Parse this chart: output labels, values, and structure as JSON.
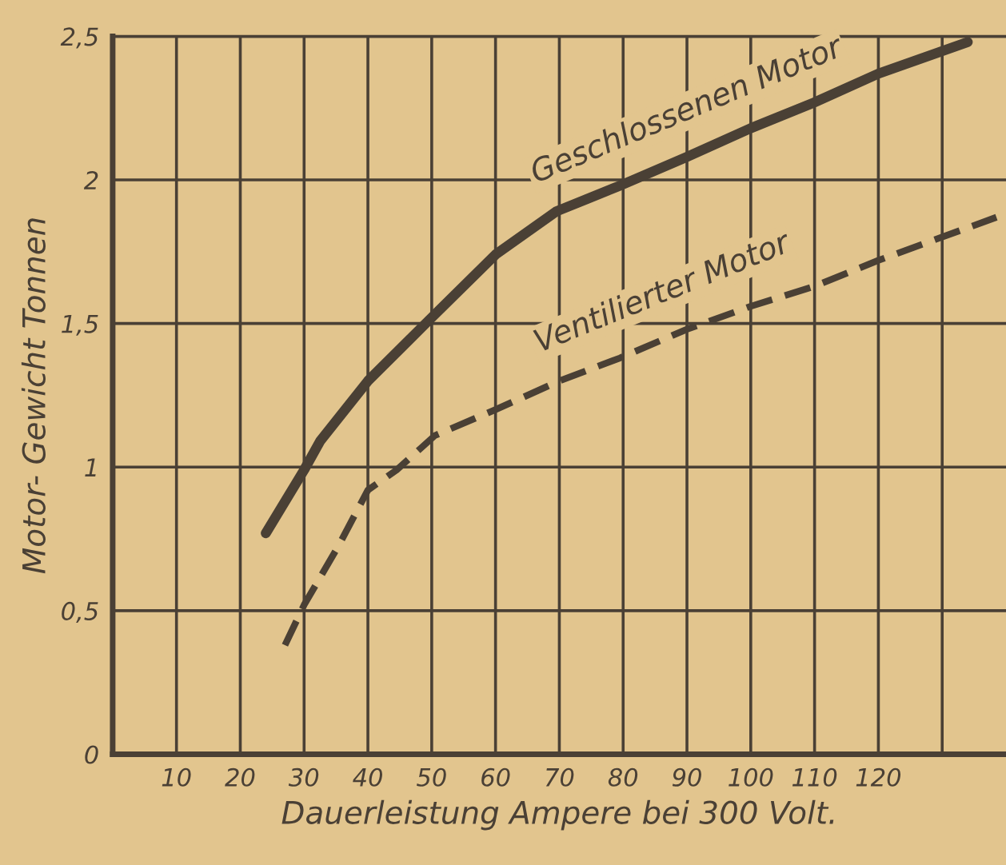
{
  "chart_data": {
    "type": "line",
    "xlabel": "Dauerleistung Ampere bei 300 Volt.",
    "ylabel": "Motor- Gewicht Tonnen",
    "xlim": [
      0,
      140
    ],
    "ylim": [
      0,
      2.5
    ],
    "xticks": [
      10,
      20,
      30,
      40,
      50,
      60,
      70,
      80,
      90,
      100,
      110,
      120,
      {
        "value": 130,
        "label": null
      }
    ],
    "yticks": [
      {
        "value": 0,
        "label": "0"
      },
      {
        "value": 0.5,
        "label": "0,5"
      },
      {
        "value": 1,
        "label": "1"
      },
      {
        "value": 1.5,
        "label": "1,5"
      },
      {
        "value": 2,
        "label": "2"
      },
      {
        "value": 2.5,
        "label": "2,5"
      }
    ],
    "grid": true,
    "series": [
      {
        "name": "Geschlossenen Motor",
        "color": "#4a4035",
        "line_style": "solid",
        "x": [
          24,
          30,
          32.5,
          40,
          49.5,
          60,
          69.5,
          79.5,
          90,
          100,
          110,
          120,
          134
        ],
        "values": [
          0.77,
          0.99,
          1.09,
          1.3,
          1.51,
          1.74,
          1.89,
          1.98,
          2.08,
          2.18,
          2.27,
          2.37,
          2.48
        ]
      },
      {
        "name": "Ventilierter Motor",
        "color": "#4a4035",
        "line_style": "dashed",
        "x": [
          27,
          30,
          35.5,
          40,
          44.5,
          50.5,
          60,
          70,
          79.5,
          90,
          100,
          110,
          120,
          138.5
        ],
        "values": [
          0.38,
          0.52,
          0.73,
          0.92,
          0.99,
          1.11,
          1.2,
          1.3,
          1.38,
          1.48,
          1.56,
          1.63,
          1.72,
          1.87
        ]
      }
    ]
  }
}
